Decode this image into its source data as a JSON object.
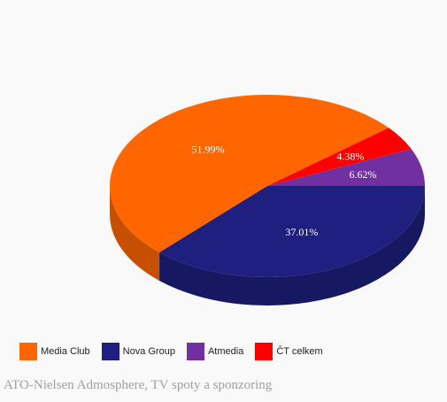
{
  "chart_data": {
    "type": "pie",
    "title": "",
    "slices": [
      {
        "label": "Media Club",
        "value": 51.99,
        "value_label": "51.99%",
        "color": "#ff6600"
      },
      {
        "label": "Nova Group",
        "value": 37.01,
        "value_label": "37.01%",
        "color": "#1e1f7e"
      },
      {
        "label": "Atmedia",
        "value": 6.62,
        "value_label": "6.62%",
        "color": "#7030a0"
      },
      {
        "label": "ČT celkem",
        "value": 4.38,
        "value_label": "4.38%",
        "color": "#ff0000"
      }
    ],
    "legend_position": "bottom-left",
    "three_d": true
  },
  "legend": {
    "items": [
      {
        "label": "Media Club",
        "color": "#ff6600"
      },
      {
        "label": "Nova Group",
        "color": "#1e1f7e"
      },
      {
        "label": "Atmedia",
        "color": "#7030a0"
      },
      {
        "label": "ČT celkem",
        "color": "#ff0000"
      }
    ]
  },
  "source": "ATO-Nielsen Admosphere, TV spoty a sponzoring"
}
